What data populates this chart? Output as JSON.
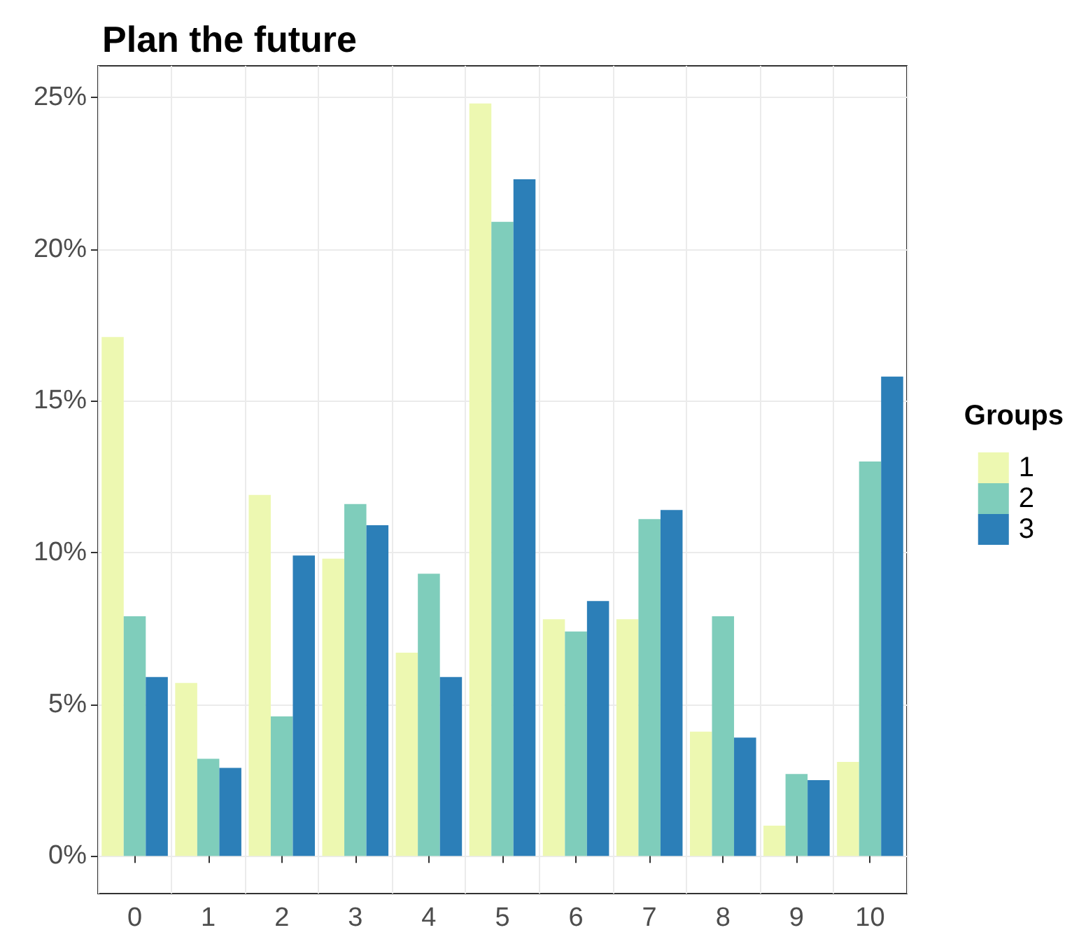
{
  "chart_data": {
    "type": "bar",
    "title": "Plan the future",
    "legend_title": "Groups",
    "categories": [
      "0",
      "1",
      "2",
      "3",
      "4",
      "5",
      "6",
      "7",
      "8",
      "9",
      "10"
    ],
    "series": [
      {
        "name": "1",
        "color": "#edf8b1",
        "values": [
          17.1,
          5.7,
          11.9,
          9.8,
          6.7,
          24.8,
          7.8,
          7.8,
          4.1,
          1.0,
          3.1
        ]
      },
      {
        "name": "2",
        "color": "#7fcdbb",
        "values": [
          7.9,
          3.2,
          4.6,
          11.6,
          9.3,
          20.9,
          7.4,
          11.1,
          7.9,
          2.7,
          13.0
        ]
      },
      {
        "name": "3",
        "color": "#2c7fb8",
        "values": [
          5.9,
          2.9,
          9.9,
          10.9,
          5.9,
          22.3,
          8.4,
          11.4,
          3.9,
          2.5,
          15.8
        ]
      }
    ],
    "ylim": [
      -1.24,
      26.04
    ],
    "yticks": [
      {
        "value": 0,
        "label": "0%"
      },
      {
        "value": 5,
        "label": "5%"
      },
      {
        "value": 10,
        "label": "10%"
      },
      {
        "value": 15,
        "label": "15%"
      },
      {
        "value": 20,
        "label": "20%"
      },
      {
        "value": 25,
        "label": "25%"
      }
    ],
    "grid": true,
    "legend": "right"
  }
}
